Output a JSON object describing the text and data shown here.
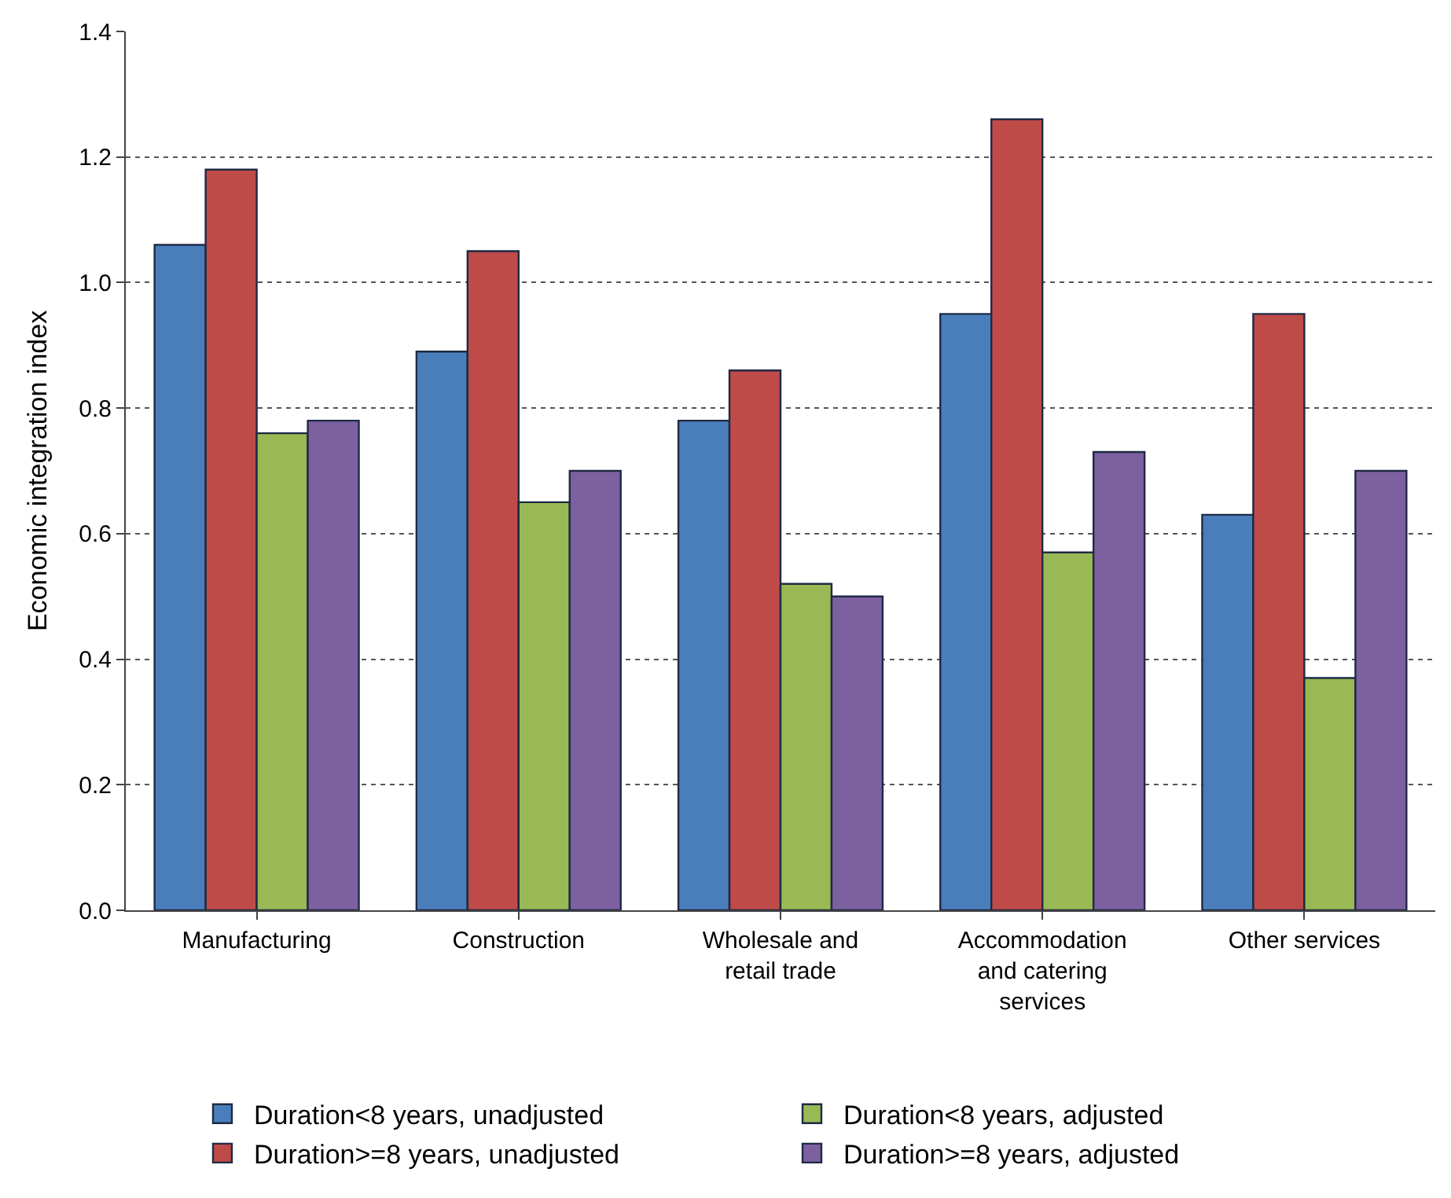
{
  "chart_data": {
    "type": "bar",
    "ylabel": "Economic integration index",
    "categories": [
      "Manufacturing",
      "Construction",
      "Wholesale and retail trade",
      "Accommodation and catering services",
      "Other services"
    ],
    "series": [
      {
        "name": "Duration<8 years, unadjusted",
        "color": "#4a7ebb",
        "values": [
          1.06,
          0.89,
          0.78,
          0.95,
          0.63
        ]
      },
      {
        "name": "Duration>=8 years, unadjusted",
        "color": "#be4b48",
        "values": [
          1.18,
          1.05,
          0.86,
          1.26,
          0.95
        ]
      },
      {
        "name": "Duration<8 years, adjusted",
        "color": "#98b954",
        "values": [
          0.76,
          0.65,
          0.52,
          0.57,
          0.37
        ]
      },
      {
        "name": "Duration>=8 years, adjusted",
        "color": "#7d60a0",
        "values": [
          0.78,
          0.7,
          0.5,
          0.73,
          0.7
        ]
      }
    ],
    "ylim": [
      0,
      1.4
    ],
    "yticks": [
      {
        "value": 0,
        "label": "0.0"
      },
      {
        "value": 0.2,
        "label": "0.2"
      },
      {
        "value": 0.4,
        "label": "0.4"
      },
      {
        "value": 0.6,
        "label": "0.6"
      },
      {
        "value": 0.8,
        "label": "0.8"
      },
      {
        "value": 1.0,
        "label": "1.0"
      },
      {
        "value": 1.2,
        "label": "1.2"
      },
      {
        "value": 1.4,
        "label": "1.4"
      }
    ],
    "grid": "y",
    "legend": "bottom"
  }
}
